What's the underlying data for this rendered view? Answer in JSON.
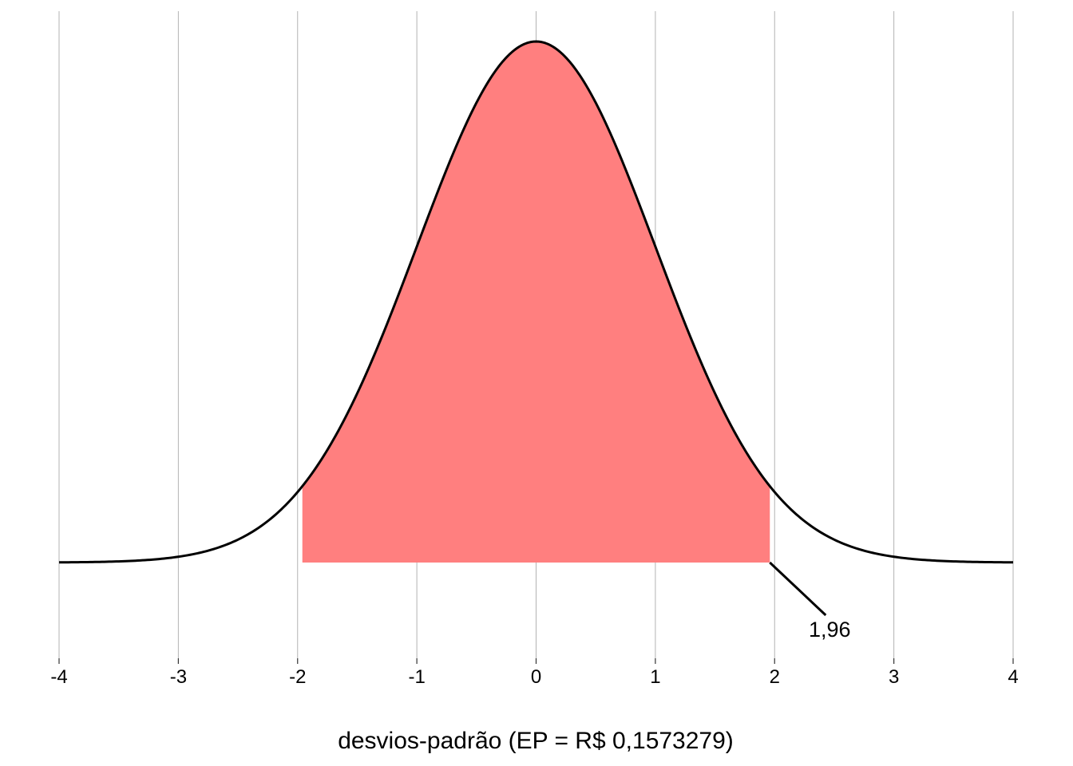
{
  "chart_data": {
    "type": "area",
    "distribution": "standard normal density",
    "xlabel": "desvios-padrão (EP = R$ 0,1573279)",
    "ylabel": "",
    "title": "",
    "xlim": [
      -4,
      4
    ],
    "x_ticks": [
      -4,
      -3,
      -2,
      -1,
      0,
      1,
      2,
      3,
      4
    ],
    "x_tick_labels": [
      "-4",
      "-3",
      "-2",
      "-1",
      "0",
      "1",
      "2",
      "3",
      "4"
    ],
    "shaded_region": {
      "from": -1.96,
      "to": 1.96
    },
    "annotation": {
      "text": "1,96",
      "x": 1.96
    },
    "grid": "vertical major lines only",
    "colors": {
      "shade": "#ff7f7f",
      "curve": "#000000",
      "grid": "#b3b3b3"
    }
  }
}
